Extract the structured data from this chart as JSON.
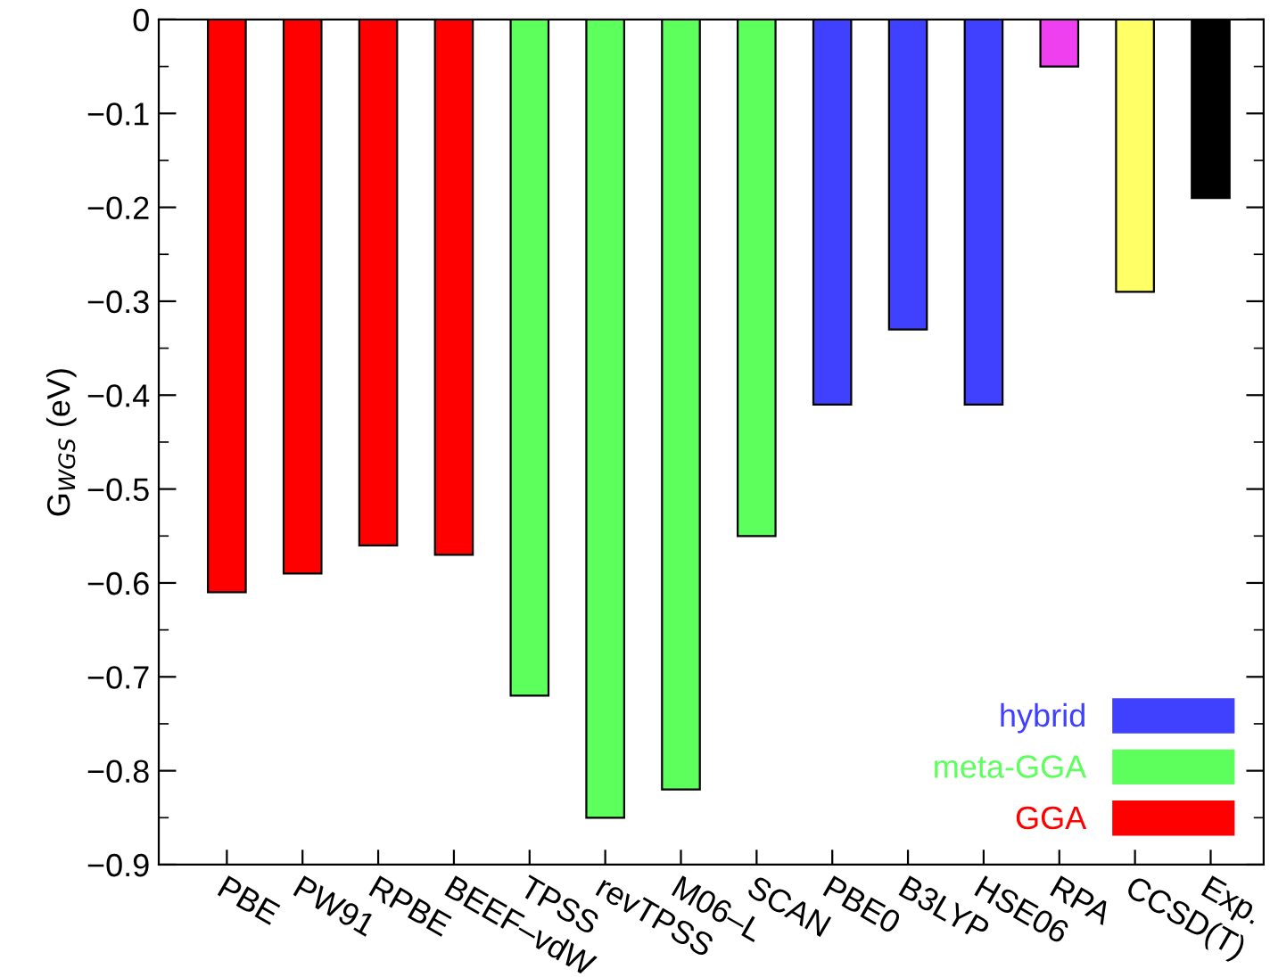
{
  "chart_data": {
    "type": "bar",
    "ylabel": "G$_{WGS}$ (eV)",
    "categories": [
      "PBE",
      "PW91",
      "RPBE",
      "BEEF–vdW",
      "TPSS",
      "revTPSS",
      "M06–L",
      "SCAN",
      "PBE0",
      "B3LYP",
      "HSE06",
      "RPA",
      "CCSD(T)",
      "Exp."
    ],
    "series": [
      {
        "name": "GGA",
        "color": "#ff0000",
        "values": [
          -0.61,
          -0.59,
          -0.56,
          -0.57,
          null,
          null,
          null,
          null,
          null,
          null,
          null,
          null,
          null,
          null
        ]
      },
      {
        "name": "meta-GGA",
        "color": "#5cff5c",
        "values": [
          null,
          null,
          null,
          null,
          -0.72,
          -0.85,
          -0.82,
          -0.55,
          null,
          null,
          null,
          null,
          null,
          null
        ]
      },
      {
        "name": "hybrid",
        "color": "#4040ff",
        "values": [
          null,
          null,
          null,
          null,
          null,
          null,
          null,
          null,
          -0.41,
          -0.33,
          -0.41,
          null,
          null,
          null
        ]
      },
      {
        "color": "#ee40ee",
        "values": [
          null,
          null,
          null,
          null,
          null,
          null,
          null,
          null,
          null,
          null,
          null,
          -0.05,
          null,
          null
        ]
      },
      {
        "color": "#ffff66",
        "values": [
          null,
          null,
          null,
          null,
          null,
          null,
          null,
          null,
          null,
          null,
          null,
          null,
          -0.29,
          null
        ]
      },
      {
        "color": "#000000",
        "values": [
          null,
          null,
          null,
          null,
          null,
          null,
          null,
          null,
          null,
          null,
          null,
          null,
          null,
          -0.19
        ]
      }
    ],
    "ylim": [
      -0.9,
      0
    ],
    "yticks": [
      {
        "value": -0.9,
        "label": "−0.9"
      },
      {
        "value": -0.8,
        "label": "−0.8"
      },
      {
        "value": -0.7,
        "label": "−0.7"
      },
      {
        "value": -0.6,
        "label": "−0.6"
      },
      {
        "value": -0.5,
        "label": "−0.5"
      },
      {
        "value": -0.4,
        "label": "−0.4"
      },
      {
        "value": -0.3,
        "label": "−0.3"
      },
      {
        "value": -0.2,
        "label": "−0.2"
      },
      {
        "value": -0.1,
        "label": "−0.1"
      },
      0
    ],
    "grid": false,
    "legend": "bottom right"
  }
}
